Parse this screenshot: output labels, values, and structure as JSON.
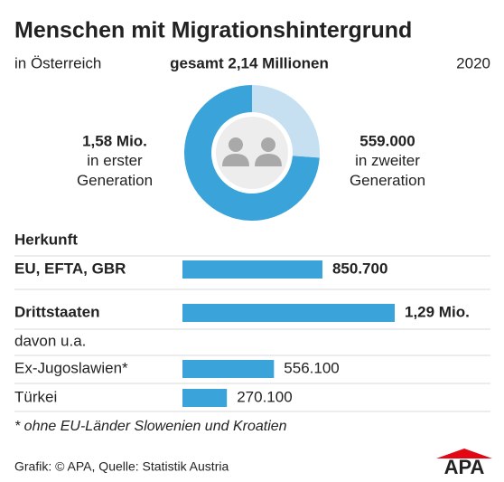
{
  "header": {
    "title": "Menschen mit Migrationshintergrund",
    "region": "in Österreich",
    "total": "gesamt 2,14 Millionen",
    "year": "2020"
  },
  "chart_data": [
    {
      "type": "pie",
      "categories": [
        "in erster Generation",
        "in zweiter Generation"
      ],
      "values": [
        1580000,
        559000
      ],
      "value_labels": [
        "1,58 Mio.",
        "559.000"
      ],
      "colors": [
        "#3aa3d9",
        "#c6e0f2"
      ]
    },
    {
      "type": "bar",
      "title": "Herkunft",
      "note": "davon u.a.",
      "categories": [
        "EU, EFTA, GBR",
        "Drittstaaten",
        "Ex-Jugoslawien*",
        "Türkei"
      ],
      "values": [
        850700,
        1290000,
        556100,
        270100
      ],
      "value_labels": [
        "850.700",
        "1,29 Mio.",
        "556.100",
        "270.100"
      ],
      "color": "#3aa3d9"
    }
  ],
  "footnote": "* ohne EU-Länder Slowenien und Kroatien",
  "source": "Grafik: © APA, Quelle: Statistik Austria",
  "logo": "APA"
}
